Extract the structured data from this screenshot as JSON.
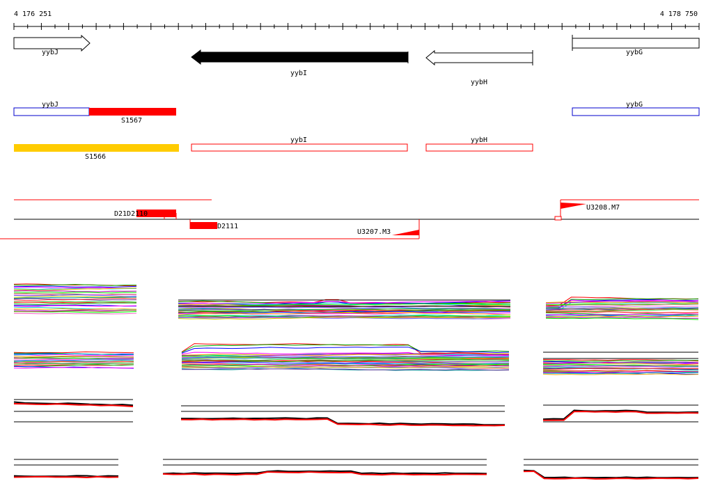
{
  "ruler": {
    "start_label": "4 176 251",
    "end_label": "4 178 750",
    "start": 4176251,
    "end": 4178750
  },
  "genes": [
    {
      "name": "yybJ",
      "strand": "+",
      "style": "open-arrow"
    },
    {
      "name": "yybI",
      "strand": "-",
      "style": "filled-arrow"
    },
    {
      "name": "yybH",
      "strand": "-",
      "style": "open-arrow"
    },
    {
      "name": "yybG",
      "strand": "+",
      "style": "open-box"
    }
  ],
  "segments_blue": [
    {
      "label": "yybJ"
    },
    {
      "label": "yybG"
    }
  ],
  "segments_red": [
    {
      "label": "S1567",
      "color": "#ff0000"
    },
    {
      "label": "S1566",
      "color": "#ffcc00"
    },
    {
      "label": "yybI",
      "color": "#ff0000"
    },
    {
      "label": "yybH",
      "color": "#ff0000"
    }
  ],
  "features": [
    {
      "label": "D21D2110"
    },
    {
      "label": "D2111"
    },
    {
      "label": "U3207.M3"
    },
    {
      "label": "U3208.M7"
    }
  ],
  "colors": {
    "red": "#ff0000",
    "yellow": "#ffcc00",
    "blue": "#0000cc",
    "black": "#000000"
  },
  "track_palette": [
    "#ff0000",
    "#00aa00",
    "#0000ff",
    "#ff00ff",
    "#00cccc",
    "#ffaa00",
    "#aa00aa",
    "#00ff00",
    "#996633",
    "#ff66cc",
    "#6666ff",
    "#cccc00",
    "#009999",
    "#663399",
    "#ff3333",
    "#33cc33"
  ]
}
